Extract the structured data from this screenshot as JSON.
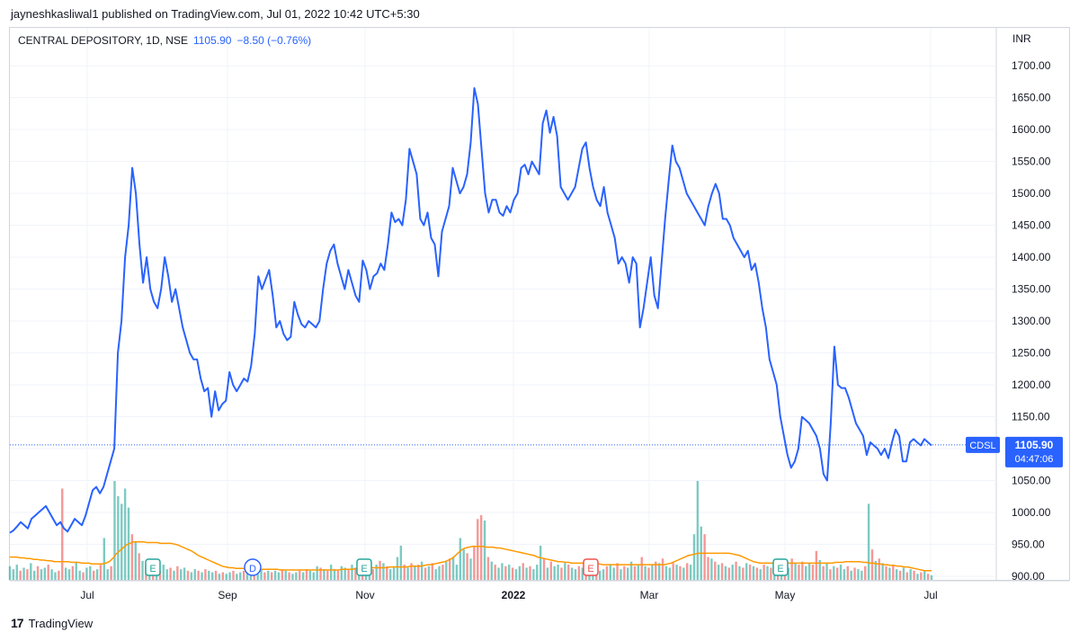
{
  "caption": "jayneshkasliwal1 published on TradingView.com, Jul 01, 2022 10:42 UTC+5:30",
  "legend": {
    "symbol": "CENTRAL DEPOSITORY, 1D, NSE",
    "last": "1105.90",
    "change": "−8.50 (−0.76%)"
  },
  "currency": "INR",
  "price_tag": {
    "symbol": "CDSL",
    "price": "1105.90",
    "countdown": "04:47:06"
  },
  "footer": {
    "brand": "TradingView"
  },
  "colors": {
    "line": "#2962ff",
    "vol_up": "#26a69a",
    "vol_down": "#ef5350",
    "ma": "#ff9800",
    "grid": "#f0f3fa"
  },
  "icons": [
    "tradingview-logo-icon"
  ],
  "chart_data": {
    "type": "line",
    "title": "CENTRAL DEPOSITORY, 1D, NSE",
    "ylim": [
      900,
      1720
    ],
    "yticks": [
      "1700.00",
      "1650.00",
      "1600.00",
      "1550.00",
      "1500.00",
      "1450.00",
      "1400.00",
      "1350.00",
      "1300.00",
      "1250.00",
      "1200.00",
      "1150.00",
      "1100.00",
      "1050.00",
      "1000.00",
      "950.00",
      "900.00"
    ],
    "xticks": [
      "Jul",
      "Sep",
      "Nov",
      "2022",
      "Mar",
      "May",
      "Jul"
    ],
    "event_markers": [
      "E",
      "D",
      "E",
      "E",
      "E"
    ],
    "series": [
      {
        "values": [
          968,
          972,
          978,
          985,
          980,
          975,
          990,
          995,
          1000,
          1005,
          1010,
          1000,
          990,
          980,
          985,
          975,
          970,
          980,
          990,
          985,
          980,
          995,
          1015,
          1035,
          1040,
          1030,
          1040,
          1060,
          1080,
          1100,
          1250,
          1300,
          1400,
          1450,
          1540,
          1500,
          1420,
          1360,
          1400,
          1350,
          1330,
          1320,
          1350,
          1400,
          1370,
          1330,
          1350,
          1320,
          1290,
          1270,
          1250,
          1240,
          1240,
          1210,
          1190,
          1195,
          1150,
          1190,
          1160,
          1170,
          1175,
          1220,
          1200,
          1190,
          1200,
          1210,
          1205,
          1230,
          1280,
          1370,
          1350,
          1365,
          1380,
          1340,
          1290,
          1300,
          1280,
          1270,
          1275,
          1330,
          1310,
          1295,
          1290,
          1300,
          1295,
          1290,
          1300,
          1350,
          1390,
          1410,
          1420,
          1390,
          1370,
          1350,
          1380,
          1360,
          1340,
          1330,
          1395,
          1380,
          1350,
          1370,
          1375,
          1390,
          1380,
          1420,
          1470,
          1455,
          1460,
          1450,
          1490,
          1570,
          1550,
          1530,
          1460,
          1450,
          1470,
          1430,
          1420,
          1370,
          1440,
          1460,
          1480,
          1540,
          1520,
          1500,
          1510,
          1530,
          1580,
          1665,
          1640,
          1570,
          1500,
          1470,
          1490,
          1490,
          1470,
          1465,
          1480,
          1470,
          1490,
          1500,
          1540,
          1545,
          1530,
          1550,
          1540,
          1530,
          1610,
          1630,
          1595,
          1620,
          1590,
          1510,
          1500,
          1490,
          1500,
          1510,
          1540,
          1570,
          1580,
          1540,
          1510,
          1490,
          1480,
          1510,
          1470,
          1450,
          1430,
          1390,
          1400,
          1390,
          1360,
          1400,
          1390,
          1290,
          1320,
          1360,
          1400,
          1340,
          1320,
          1390,
          1460,
          1520,
          1575,
          1550,
          1540,
          1520,
          1500,
          1490,
          1480,
          1470,
          1460,
          1450,
          1480,
          1500,
          1515,
          1500,
          1460,
          1460,
          1450,
          1430,
          1420,
          1410,
          1400,
          1410,
          1380,
          1390,
          1360,
          1320,
          1290,
          1240,
          1220,
          1200,
          1150,
          1120,
          1090,
          1070,
          1080,
          1100,
          1150,
          1145,
          1140,
          1130,
          1120,
          1100,
          1060,
          1050,
          1140,
          1260,
          1200,
          1195,
          1195,
          1180,
          1160,
          1140,
          1130,
          1120,
          1090,
          1110,
          1105,
          1100,
          1090,
          1100,
          1085,
          1110,
          1130,
          1120,
          1080,
          1080,
          1110,
          1115,
          1110,
          1105,
          1115,
          1110,
          1105
        ]
      }
    ],
    "volume": [
      [
        18,
        0
      ],
      [
        14,
        0
      ],
      [
        20,
        0
      ],
      [
        12,
        1
      ],
      [
        16,
        0
      ],
      [
        14,
        1
      ],
      [
        22,
        0
      ],
      [
        12,
        0
      ],
      [
        18,
        1
      ],
      [
        14,
        0
      ],
      [
        16,
        0
      ],
      [
        20,
        1
      ],
      [
        14,
        0
      ],
      [
        10,
        0
      ],
      [
        12,
        1
      ],
      [
        120,
        1
      ],
      [
        16,
        0
      ],
      [
        14,
        0
      ],
      [
        18,
        1
      ],
      [
        24,
        0
      ],
      [
        12,
        0
      ],
      [
        10,
        1
      ],
      [
        16,
        0
      ],
      [
        18,
        0
      ],
      [
        12,
        1
      ],
      [
        14,
        0
      ],
      [
        20,
        1
      ],
      [
        55,
        0
      ],
      [
        14,
        0
      ],
      [
        18,
        1
      ],
      [
        130,
        0
      ],
      [
        110,
        0
      ],
      [
        100,
        0
      ],
      [
        120,
        0
      ],
      [
        95,
        0
      ],
      [
        60,
        1
      ],
      [
        50,
        0
      ],
      [
        35,
        1
      ],
      [
        25,
        0
      ],
      [
        18,
        1
      ],
      [
        16,
        0
      ],
      [
        14,
        1
      ],
      [
        18,
        0
      ],
      [
        12,
        1
      ],
      [
        20,
        0
      ],
      [
        14,
        0
      ],
      [
        16,
        1
      ],
      [
        12,
        0
      ],
      [
        18,
        1
      ],
      [
        14,
        0
      ],
      [
        16,
        0
      ],
      [
        12,
        1
      ],
      [
        10,
        0
      ],
      [
        14,
        0
      ],
      [
        12,
        1
      ],
      [
        10,
        0
      ],
      [
        14,
        1
      ],
      [
        12,
        0
      ],
      [
        10,
        0
      ],
      [
        12,
        1
      ],
      [
        8,
        0
      ],
      [
        10,
        1
      ],
      [
        8,
        0
      ],
      [
        10,
        0
      ],
      [
        12,
        1
      ],
      [
        8,
        0
      ],
      [
        10,
        0
      ],
      [
        12,
        1
      ],
      [
        14,
        0
      ],
      [
        18,
        0
      ],
      [
        16,
        1
      ],
      [
        12,
        0
      ],
      [
        14,
        0
      ],
      [
        10,
        1
      ],
      [
        12,
        0
      ],
      [
        10,
        1
      ],
      [
        12,
        0
      ],
      [
        10,
        0
      ],
      [
        14,
        1
      ],
      [
        12,
        0
      ],
      [
        10,
        1
      ],
      [
        8,
        0
      ],
      [
        10,
        0
      ],
      [
        12,
        1
      ],
      [
        10,
        0
      ],
      [
        14,
        1
      ],
      [
        12,
        0
      ],
      [
        10,
        0
      ],
      [
        18,
        0
      ],
      [
        16,
        1
      ],
      [
        14,
        0
      ],
      [
        12,
        1
      ],
      [
        20,
        0
      ],
      [
        14,
        0
      ],
      [
        12,
        1
      ],
      [
        18,
        0
      ],
      [
        16,
        0
      ],
      [
        14,
        1
      ],
      [
        20,
        0
      ],
      [
        16,
        1
      ],
      [
        14,
        0
      ],
      [
        12,
        1
      ],
      [
        18,
        0
      ],
      [
        16,
        0
      ],
      [
        14,
        1
      ],
      [
        20,
        0
      ],
      [
        25,
        1
      ],
      [
        22,
        0
      ],
      [
        18,
        1
      ],
      [
        14,
        0
      ],
      [
        16,
        0
      ],
      [
        30,
        0
      ],
      [
        45,
        0
      ],
      [
        20,
        1
      ],
      [
        16,
        0
      ],
      [
        22,
        1
      ],
      [
        18,
        0
      ],
      [
        20,
        1
      ],
      [
        24,
        0
      ],
      [
        16,
        1
      ],
      [
        18,
        0
      ],
      [
        22,
        1
      ],
      [
        14,
        0
      ],
      [
        18,
        0
      ],
      [
        20,
        1
      ],
      [
        24,
        0
      ],
      [
        28,
        1
      ],
      [
        30,
        0
      ],
      [
        20,
        0
      ],
      [
        55,
        0
      ],
      [
        40,
        0
      ],
      [
        35,
        1
      ],
      [
        28,
        0
      ],
      [
        45,
        1
      ],
      [
        80,
        1
      ],
      [
        85,
        1
      ],
      [
        78,
        0
      ],
      [
        30,
        1
      ],
      [
        24,
        0
      ],
      [
        20,
        1
      ],
      [
        16,
        0
      ],
      [
        22,
        0
      ],
      [
        18,
        1
      ],
      [
        20,
        0
      ],
      [
        16,
        1
      ],
      [
        14,
        0
      ],
      [
        18,
        0
      ],
      [
        22,
        1
      ],
      [
        16,
        0
      ],
      [
        18,
        1
      ],
      [
        14,
        0
      ],
      [
        20,
        0
      ],
      [
        45,
        0
      ],
      [
        28,
        1
      ],
      [
        16,
        0
      ],
      [
        24,
        1
      ],
      [
        18,
        0
      ],
      [
        20,
        0
      ],
      [
        16,
        1
      ],
      [
        22,
        0
      ],
      [
        20,
        1
      ],
      [
        16,
        0
      ],
      [
        14,
        0
      ],
      [
        18,
        1
      ],
      [
        16,
        0
      ],
      [
        22,
        1
      ],
      [
        14,
        0
      ],
      [
        18,
        0
      ],
      [
        16,
        1
      ],
      [
        12,
        0
      ],
      [
        14,
        0
      ],
      [
        18,
        1
      ],
      [
        20,
        0
      ],
      [
        16,
        0
      ],
      [
        22,
        1
      ],
      [
        14,
        0
      ],
      [
        18,
        1
      ],
      [
        16,
        0
      ],
      [
        24,
        0
      ],
      [
        18,
        1
      ],
      [
        20,
        0
      ],
      [
        30,
        1
      ],
      [
        18,
        0
      ],
      [
        16,
        1
      ],
      [
        20,
        0
      ],
      [
        24,
        1
      ],
      [
        22,
        0
      ],
      [
        28,
        1
      ],
      [
        18,
        0
      ],
      [
        16,
        0
      ],
      [
        22,
        1
      ],
      [
        20,
        0
      ],
      [
        18,
        1
      ],
      [
        16,
        0
      ],
      [
        22,
        1
      ],
      [
        20,
        0
      ],
      [
        60,
        0
      ],
      [
        130,
        0
      ],
      [
        70,
        0
      ],
      [
        60,
        1
      ],
      [
        30,
        1
      ],
      [
        28,
        0
      ],
      [
        24,
        1
      ],
      [
        20,
        0
      ],
      [
        22,
        1
      ],
      [
        18,
        0
      ],
      [
        16,
        1
      ],
      [
        20,
        0
      ],
      [
        24,
        1
      ],
      [
        18,
        0
      ],
      [
        16,
        1
      ],
      [
        22,
        0
      ],
      [
        20,
        1
      ],
      [
        18,
        0
      ],
      [
        16,
        1
      ],
      [
        14,
        0
      ],
      [
        20,
        1
      ],
      [
        18,
        0
      ],
      [
        16,
        1
      ],
      [
        22,
        0
      ],
      [
        20,
        1
      ],
      [
        24,
        0
      ],
      [
        18,
        1
      ],
      [
        16,
        0
      ],
      [
        28,
        1
      ],
      [
        22,
        0
      ],
      [
        20,
        1
      ],
      [
        24,
        1
      ],
      [
        18,
        0
      ],
      [
        22,
        0
      ],
      [
        20,
        1
      ],
      [
        38,
        1
      ],
      [
        26,
        0
      ],
      [
        18,
        1
      ],
      [
        22,
        0
      ],
      [
        14,
        1
      ],
      [
        18,
        0
      ],
      [
        16,
        1
      ],
      [
        20,
        0
      ],
      [
        14,
        0
      ],
      [
        18,
        1
      ],
      [
        12,
        0
      ],
      [
        16,
        1
      ],
      [
        14,
        0
      ],
      [
        12,
        0
      ],
      [
        18,
        1
      ],
      [
        100,
        0
      ],
      [
        40,
        1
      ],
      [
        25,
        0
      ],
      [
        28,
        1
      ],
      [
        22,
        0
      ],
      [
        18,
        1
      ],
      [
        16,
        0
      ],
      [
        20,
        1
      ],
      [
        14,
        0
      ],
      [
        12,
        1
      ],
      [
        16,
        0
      ],
      [
        10,
        1
      ],
      [
        14,
        0
      ],
      [
        12,
        1
      ],
      [
        8,
        0
      ],
      [
        10,
        1
      ],
      [
        12,
        0
      ],
      [
        8,
        1
      ],
      [
        6,
        0
      ]
    ],
    "ma": [
      30,
      30,
      30,
      29,
      29,
      28,
      28,
      27,
      27,
      26,
      26,
      25,
      25,
      24,
      24,
      24,
      24,
      24,
      23,
      23,
      23,
      22,
      22,
      22,
      21,
      21,
      21,
      21,
      22,
      24,
      28,
      34,
      38,
      42,
      46,
      48,
      50,
      50,
      50,
      50,
      49,
      49,
      49,
      49,
      48,
      48,
      48,
      48,
      47,
      46,
      44,
      42,
      40,
      38,
      35,
      32,
      30,
      28,
      26,
      24,
      22,
      20,
      18,
      17,
      16,
      16,
      15,
      15,
      15,
      14,
      14,
      14,
      14,
      14,
      14,
      14,
      14,
      14,
      14,
      13,
      13,
      13,
      13,
      13,
      13,
      13,
      13,
      13,
      13,
      13,
      13,
      13,
      13,
      13,
      13,
      13,
      13,
      14,
      14,
      14,
      14,
      15,
      15,
      15,
      16,
      16,
      16,
      16,
      16,
      16,
      16,
      17,
      17,
      17,
      17,
      17,
      17,
      18,
      18,
      18,
      18,
      19,
      20,
      20,
      21,
      22,
      23,
      24,
      26,
      28,
      32,
      36,
      40,
      42,
      43,
      44,
      44,
      44,
      44,
      43,
      43,
      43,
      42,
      42,
      41,
      40,
      39,
      38,
      37,
      36,
      35,
      34,
      33,
      32,
      30,
      29,
      28,
      27,
      26,
      25,
      24,
      24,
      23,
      23,
      22,
      22,
      22,
      22,
      21,
      21,
      21,
      21,
      21,
      20,
      20,
      20,
      20,
      20,
      20,
      20,
      20,
      20,
      20,
      20,
      20,
      20,
      20,
      20,
      20,
      20,
      20,
      20,
      21,
      22,
      24,
      26,
      28,
      30,
      32,
      33,
      34,
      35,
      35,
      35,
      35,
      35,
      35,
      35,
      35,
      35,
      35,
      34,
      33,
      32,
      30,
      28,
      26,
      24,
      23,
      22,
      22,
      22,
      22,
      22,
      22,
      22,
      22,
      22,
      22,
      22,
      22,
      22,
      22,
      22,
      22,
      22,
      22,
      22,
      22,
      22,
      22,
      23,
      23,
      23,
      24,
      24,
      24,
      24,
      24,
      23,
      23,
      22,
      22,
      21,
      21,
      20,
      20,
      19,
      19,
      18,
      18,
      17,
      17,
      16,
      15,
      14,
      13,
      12,
      12,
      12
    ]
  }
}
